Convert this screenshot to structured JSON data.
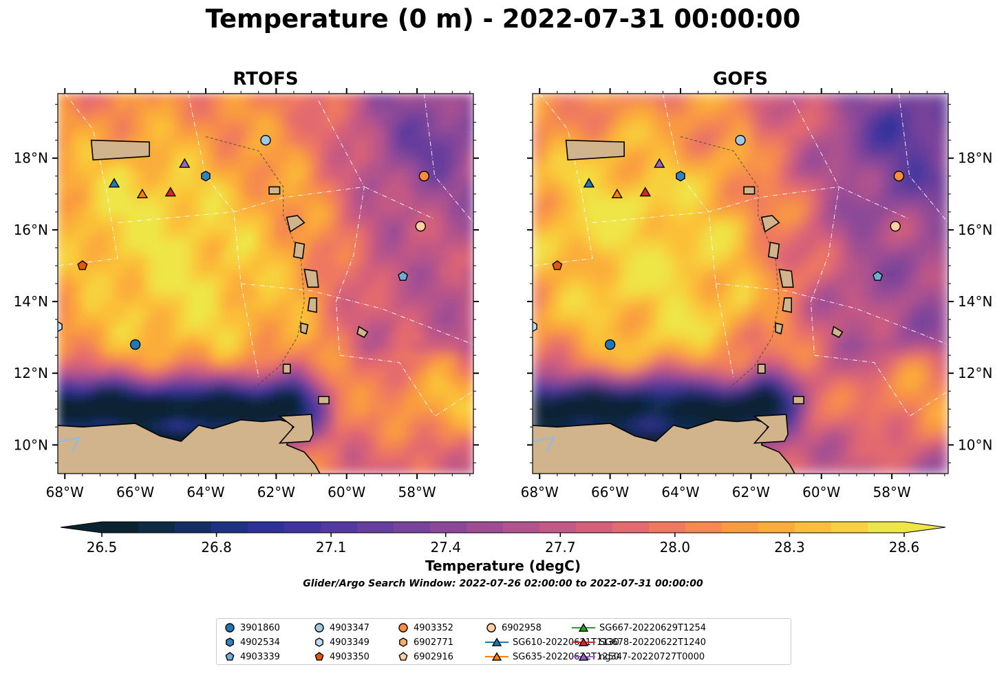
{
  "title": "Temperature (0 m) - 2022-07-31 00:00:00",
  "panels": [
    {
      "title": "RTOFS",
      "model": "rtofs"
    },
    {
      "title": "GOFS",
      "model": "gofs"
    }
  ],
  "axes": {
    "lon_range": [
      -68.2,
      -56.4
    ],
    "lat_range": [
      9.2,
      19.8
    ],
    "lon_ticks": [
      "68°W",
      "66°W",
      "64°W",
      "62°W",
      "60°W",
      "58°W"
    ],
    "lat_ticks": [
      "10°N",
      "12°N",
      "14°N",
      "16°N",
      "18°N"
    ]
  },
  "colorbar": {
    "label": "Temperature (degC)",
    "ticks": [
      "26.5",
      "26.8",
      "27.1",
      "27.4",
      "27.7",
      "28.0",
      "28.3",
      "28.6"
    ],
    "range": [
      26.5,
      28.6
    ],
    "colors": [
      "#0b2231",
      "#0e2b45",
      "#142f63",
      "#1f3181",
      "#2d3296",
      "#3f349f",
      "#533a9e",
      "#663e9c",
      "#78439a",
      "#8b4898",
      "#9e4d94",
      "#b1538d",
      "#c35984",
      "#d4607a",
      "#e36a6e",
      "#ee7860",
      "#f58950",
      "#f99b41",
      "#fbad3a",
      "#fbbf39",
      "#f7d23e",
      "#eee546"
    ],
    "extend": "both"
  },
  "search_window": "Glider/Argo Search Window: 2022-07-26 02:00:00 to 2022-07-31 00:00:00",
  "colors": {
    "land": "#d2b48c",
    "lake": "#9fb9d4"
  },
  "markers": [
    {
      "id": "3901860",
      "shape": "circle",
      "color": "#1f77b4",
      "lon": -66.0,
      "lat": 12.8
    },
    {
      "id": "4903347",
      "shape": "circle",
      "color": "#9ecae1",
      "lon": -62.3,
      "lat": 18.5
    },
    {
      "id": "4903352",
      "shape": "circle",
      "color": "#fd8d3c",
      "lon": -57.8,
      "lat": 17.5
    },
    {
      "id": "6902958",
      "shape": "circle",
      "color": "#fdd0a2",
      "lon": -57.9,
      "lat": 16.1
    },
    {
      "id": "4902534",
      "shape": "hexagon",
      "color": "#3182bd",
      "lon": -64.0,
      "lat": 17.5
    },
    {
      "id": "4903349",
      "shape": "hexagon",
      "color": "#c6dbef",
      "lon": -68.2,
      "lat": 13.3
    },
    {
      "id": "4903339",
      "shape": "pentagon",
      "color": "#6baed6",
      "lon": -58.4,
      "lat": 14.7
    },
    {
      "id": "4903350",
      "shape": "pentagon",
      "color": "#e6550d",
      "lon": -67.5,
      "lat": 15.0
    },
    {
      "id": "SG610-20220621T1130",
      "shape": "triangle",
      "color": "#1f77b4",
      "lon": -66.6,
      "lat": 17.3
    },
    {
      "id": "SG635-20220622T1250",
      "shape": "triangle",
      "color": "#ff7f0e",
      "lon": -65.8,
      "lat": 17.0
    },
    {
      "id": "SG678-20220622T1240",
      "shape": "triangle",
      "color": "#d62728",
      "lon": -65.0,
      "lat": 17.05
    },
    {
      "id": "ng347-20220727T0000",
      "shape": "triangle",
      "color": "#9467bd",
      "lon": -64.6,
      "lat": 17.85
    }
  ],
  "legend": [
    {
      "label": "3901860",
      "shape": "circle",
      "color": "#1f77b4",
      "line": false
    },
    {
      "label": "4902534",
      "shape": "hexagon",
      "color": "#3182bd",
      "line": false
    },
    {
      "label": "4903339",
      "shape": "pentagon",
      "color": "#6baed6",
      "line": false
    },
    {
      "label": "4903347",
      "shape": "circle",
      "color": "#9ecae1",
      "line": false
    },
    {
      "label": "4903349",
      "shape": "hexagon",
      "color": "#c6dbef",
      "line": false
    },
    {
      "label": "4903350",
      "shape": "pentagon",
      "color": "#e6550d",
      "line": false
    },
    {
      "label": "4903352",
      "shape": "circle",
      "color": "#fd8d3c",
      "line": false
    },
    {
      "label": "6902771",
      "shape": "hexagon",
      "color": "#fdae6b",
      "line": false
    },
    {
      "label": "6902916",
      "shape": "pentagon",
      "color": "#fdd0a2",
      "line": false
    },
    {
      "label": "6902958",
      "shape": "circle",
      "color": "#fdd0a2",
      "line": false
    },
    {
      "label": "SG610-20220621T1130",
      "shape": "triangle",
      "color": "#1f77b4",
      "line": true
    },
    {
      "label": "SG635-20220622T1250",
      "shape": "triangle",
      "color": "#ff7f0e",
      "line": true
    },
    {
      "label": "SG667-20220629T1254",
      "shape": "triangle",
      "color": "#2ca02c",
      "line": true
    },
    {
      "label": "SG678-20220622T1240",
      "shape": "triangle",
      "color": "#d62728",
      "line": true
    },
    {
      "label": "ng347-20220727T0000",
      "shape": "triangle",
      "color": "#9467bd",
      "line": true
    }
  ]
}
